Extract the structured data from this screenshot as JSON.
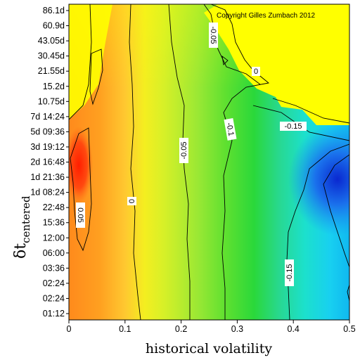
{
  "chart_data": {
    "type": "heatmap",
    "xlabel": "historical volatility",
    "ylabel_main": "δt",
    "ylabel_sub": "centered",
    "annotation": "Copyright Gilles Zumbach 2012",
    "xlim": [
      0,
      0.5
    ],
    "x_ticks": [
      "0",
      "0.1",
      "0.2",
      "0.3",
      "0.4",
      "0.5"
    ],
    "y_ticks": [
      "01:12",
      "02:24",
      "02:24",
      "03:36",
      "06:00",
      "12:00",
      "15:36",
      "22:48",
      "1d 08:24",
      "1d 21:36",
      "2d 16:48",
      "3d 19:12",
      "5d 09:36",
      "7d 14:24",
      "10.75d",
      "15.2d",
      "21.55d",
      "30.45d",
      "43.05d",
      "60.9d",
      "86.1d"
    ],
    "contour_levels": [
      -0.15,
      -0.1,
      -0.05,
      0,
      0.05
    ],
    "contour_labels": [
      {
        "text": "0.05",
        "vertical": true
      },
      {
        "text": "0",
        "vertical": true
      },
      {
        "text": "-0.05",
        "vertical": true
      },
      {
        "text": "-0.05",
        "vertical": true
      },
      {
        "text": "-0.1",
        "vertical": true
      },
      {
        "text": "0",
        "vertical": false
      },
      {
        "text": "-0.15",
        "vertical": false
      },
      {
        "text": "-0.15",
        "vertical": true
      }
    ],
    "colors": {
      "yellow": "#ffff00",
      "orange": "#ff9a20",
      "red": "#ff2a00",
      "green": "#22d430",
      "cyan": "#18e0f0",
      "blue": "#0a2ad8"
    }
  }
}
